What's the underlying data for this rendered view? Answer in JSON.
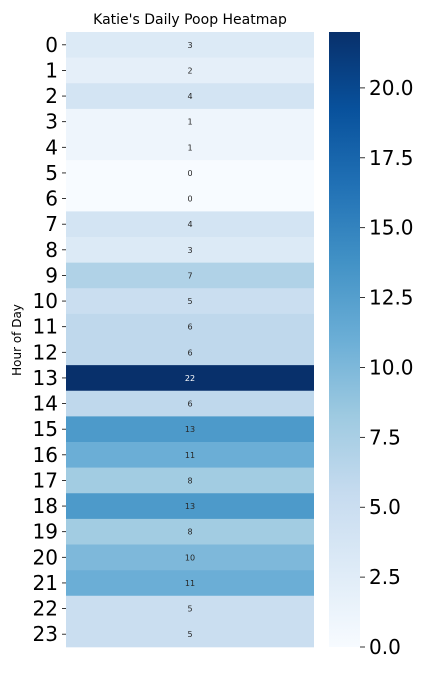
{
  "chart_data": {
    "type": "heatmap",
    "title": "Katie's Daily Poop Heatmap",
    "xlabel": "",
    "ylabel": "Hour of Day",
    "rows": [
      "0",
      "1",
      "2",
      "3",
      "4",
      "5",
      "6",
      "7",
      "8",
      "9",
      "10",
      "11",
      "12",
      "13",
      "14",
      "15",
      "16",
      "17",
      "18",
      "19",
      "20",
      "21",
      "22",
      "23"
    ],
    "values": [
      3,
      2,
      4,
      1,
      1,
      0,
      0,
      4,
      3,
      7,
      5,
      6,
      6,
      22,
      6,
      13,
      11,
      8,
      13,
      8,
      10,
      11,
      5,
      5
    ],
    "vmin": 0,
    "vmax": 22,
    "colormap": "Blues",
    "colorbar_ticks": [
      "0.0",
      "2.5",
      "5.0",
      "7.5",
      "10.0",
      "12.5",
      "15.0",
      "17.5",
      "20.0"
    ],
    "annotated": true
  }
}
